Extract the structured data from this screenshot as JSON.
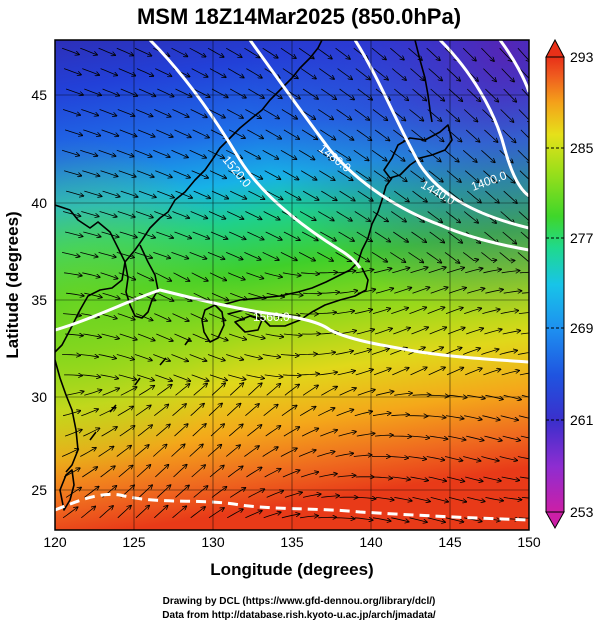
{
  "title": "MSM 18Z14Mar2025 (850.0hPa)",
  "xlabel": "Longitude (degrees)",
  "ylabel": "Latitude  (degrees)",
  "map": {
    "lon_range": [
      120,
      150
    ],
    "lat_range": [
      22.4,
      47.6
    ],
    "lon_ticks": [
      120,
      125,
      130,
      135,
      140,
      145,
      150
    ],
    "lat_ticks": [
      25,
      30,
      35,
      40,
      45
    ],
    "field": "temperature (K) shaded, streamlines, geopotential height contours",
    "contours": [
      {
        "label": "1520.0",
        "lon": 130.8,
        "lat": 41.4
      },
      {
        "label": "1480.0",
        "lon": 138.3,
        "lat": 41.7
      },
      {
        "label": "1440.0",
        "lon": 143.4,
        "lat": 40.3
      },
      {
        "label": "1400.0",
        "lon": 147.4,
        "lat": 41.0
      },
      {
        "label": "1560.0",
        "lon": 133.6,
        "lat": 34.3
      }
    ]
  },
  "colorbar": {
    "ticks": [
      293,
      285,
      277,
      269,
      261,
      253
    ],
    "range": [
      253,
      293
    ],
    "colors": [
      "#cc1fa6",
      "#8e2dd1",
      "#3b2fcc",
      "#1f54e0",
      "#1e8ff0",
      "#18c4e8",
      "#1fd98e",
      "#3fd62a",
      "#9edf1a",
      "#e6e01a",
      "#f4a11a",
      "#ef5a1f",
      "#e83018"
    ]
  },
  "credits": [
    "Drawing by DCL (https://www.gfd-dennou.org/library/dcl/)",
    "Data from http://database.rish.kyoto-u.ac.jp/arch/jmadata/"
  ]
}
